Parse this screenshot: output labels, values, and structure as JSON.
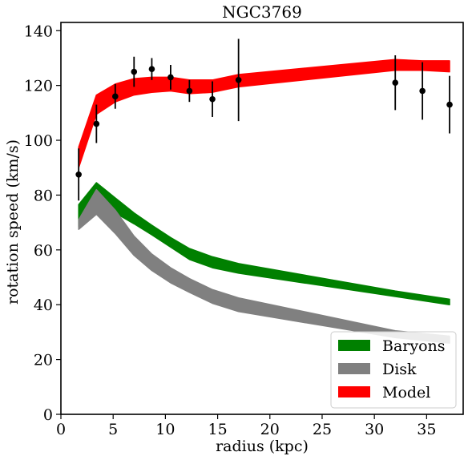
{
  "chart_data": {
    "type": "line",
    "title": "NGC3769",
    "xlabel": "radius (kpc)",
    "ylabel": "rotation speed (km/s)",
    "xlim": [
      0,
      38.5
    ],
    "ylim": [
      0,
      143
    ],
    "xticks": [
      0,
      5,
      10,
      15,
      20,
      25,
      30,
      35
    ],
    "yticks": [
      0,
      20,
      40,
      60,
      80,
      100,
      120,
      140
    ],
    "grid": false,
    "legend_position": "bottom-right",
    "colors": {
      "Baryons": "#008000",
      "Disk": "#808080",
      "Model": "#ff0000",
      "observed": "#000000"
    },
    "series": [
      {
        "name": "Baryons",
        "kind": "band",
        "x": [
          1.7,
          3.4,
          5.2,
          7.0,
          8.7,
          10.5,
          12.3,
          14.5,
          17.0,
          32.0,
          34.6,
          37.2
        ],
        "lower": [
          68.5,
          76.0,
          73.5,
          69.5,
          65.5,
          61.0,
          56.5,
          53.5,
          51.5,
          43.0,
          41.5,
          40.0
        ],
        "upper": [
          76.5,
          84.5,
          79.0,
          73.5,
          69.0,
          64.5,
          60.5,
          57.5,
          55.0,
          45.0,
          43.5,
          42.0
        ]
      },
      {
        "name": "Disk",
        "kind": "band",
        "x": [
          1.7,
          3.4,
          5.2,
          7.0,
          8.7,
          10.5,
          12.3,
          14.5,
          17.0,
          32.0,
          34.6,
          37.2
        ],
        "lower": [
          67.5,
          73.0,
          66.0,
          58.0,
          52.5,
          48.0,
          44.5,
          40.5,
          37.5,
          28.0,
          27.0,
          26.0
        ],
        "upper": [
          71.0,
          82.0,
          74.5,
          65.0,
          58.5,
          53.5,
          49.5,
          45.5,
          42.5,
          30.5,
          29.5,
          28.5
        ]
      },
      {
        "name": "Model",
        "kind": "band",
        "x": [
          1.7,
          3.4,
          5.2,
          7.0,
          8.7,
          10.5,
          12.3,
          14.5,
          17.0,
          32.0,
          34.6,
          37.2
        ],
        "lower": [
          90.0,
          109.5,
          114.0,
          116.5,
          117.5,
          118.0,
          117.0,
          117.5,
          119.5,
          125.5,
          125.5,
          125.0
        ],
        "upper": [
          97.5,
          116.5,
          120.5,
          122.5,
          123.0,
          123.0,
          122.0,
          122.0,
          124.0,
          129.5,
          129.0,
          129.0
        ]
      }
    ],
    "observed": {
      "x": [
        1.7,
        3.4,
        5.2,
        7.0,
        8.7,
        10.5,
        12.3,
        14.5,
        17.0,
        32.0,
        34.6,
        37.2
      ],
      "y": [
        87.5,
        106.0,
        116.0,
        125.0,
        126.0,
        123.0,
        118.0,
        115.0,
        122.0,
        121.0,
        118.0,
        113.0
      ],
      "err": [
        9.5,
        7.0,
        4.5,
        5.5,
        4.0,
        4.5,
        4.0,
        6.5,
        15.0,
        10.0,
        10.5,
        10.5
      ]
    }
  }
}
